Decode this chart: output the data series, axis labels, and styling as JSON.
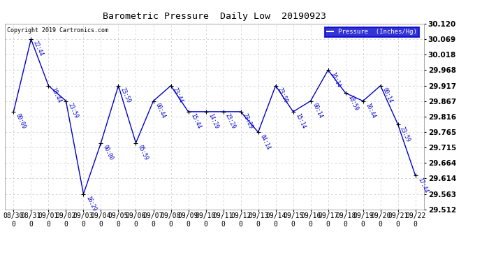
{
  "title": "Barometric Pressure  Daily Low  20190923",
  "copyright": "Copyright 2019 Cartronics.com",
  "line_color": "#0000cc",
  "background_color": "#ffffff",
  "grid_color": "#c8c8c8",
  "dates": [
    "08/30",
    "08/31",
    "09/01",
    "09/02",
    "09/03",
    "09/04",
    "09/05",
    "09/06",
    "09/07",
    "09/08",
    "09/09",
    "09/10",
    "09/11",
    "09/12",
    "09/13",
    "09/14",
    "09/15",
    "09/16",
    "09/17",
    "09/18",
    "09/19",
    "09/20",
    "09/21",
    "09/22"
  ],
  "values": [
    29.832,
    30.069,
    29.917,
    29.867,
    29.563,
    29.73,
    29.917,
    29.73,
    29.867,
    29.917,
    29.832,
    29.832,
    29.832,
    29.832,
    29.765,
    29.917,
    29.832,
    29.867,
    29.968,
    29.893,
    29.867,
    29.917,
    29.79,
    29.623
  ],
  "point_labels": [
    "00:00",
    "22:44",
    "18:44",
    "23:59",
    "16:29",
    "00:00",
    "23:59",
    "05:59",
    "00:44",
    "23:44",
    "15:44",
    "14:29",
    "23:29",
    "23:29",
    "04:14",
    "23:59",
    "15:14",
    "00:14",
    "16:14",
    "18:59",
    "16:44",
    "00:14",
    "23:59",
    "17:44"
  ],
  "ylim_min": 29.512,
  "ylim_max": 30.12,
  "yticks": [
    29.512,
    29.563,
    29.614,
    29.664,
    29.715,
    29.765,
    29.816,
    29.867,
    29.917,
    29.968,
    30.018,
    30.069,
    30.12
  ],
  "legend_color": "#0000cc",
  "legend_bg": "#0000cc"
}
